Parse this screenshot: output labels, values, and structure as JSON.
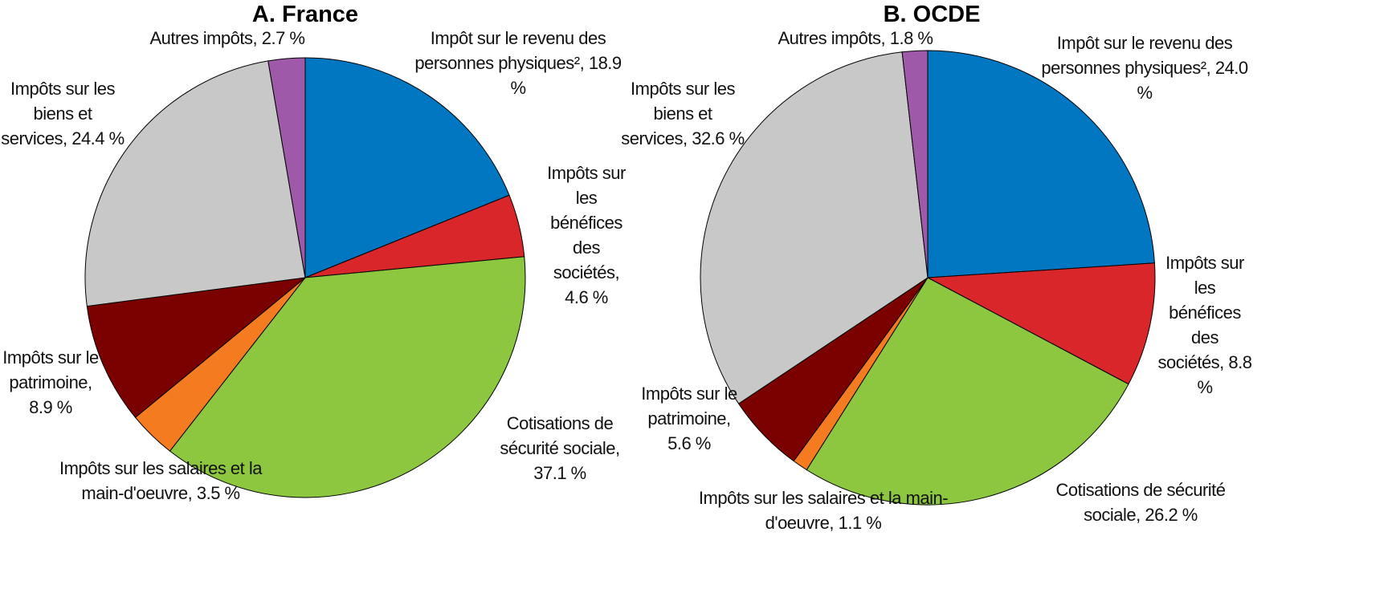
{
  "chart_data": [
    {
      "type": "pie",
      "title": "A. France",
      "categories": [
        "Impôt sur le revenu des personnes physiques²,",
        "Impôts sur les bénéfices des sociétés,",
        "Cotisations de sécurité sociale,",
        "Impôts sur les salaires et la main-d'oeuvre,",
        "Impôts sur le patrimoine,",
        "Impôts sur les biens et services,",
        "Autres impôts,"
      ],
      "values": [
        18.9,
        4.6,
        37.1,
        3.5,
        8.9,
        24.4,
        2.7
      ],
      "value_labels": [
        "18.9 %",
        "4.6 %",
        "37.1 %",
        "3.5 %",
        "8.9 %",
        "24.4 %",
        "2.7 %"
      ],
      "colors": [
        "#0077c0",
        "#d9262b",
        "#8dc63f",
        "#f47b20",
        "#7b0000",
        "#c8c8c8",
        "#9e5aa8"
      ]
    },
    {
      "type": "pie",
      "title": "B. OCDE",
      "categories": [
        "Impôt sur le revenu des personnes physiques²,",
        "Impôts sur les bénéfices des sociétés,",
        "Cotisations de sécurité sociale,",
        "Impôts sur les salaires et la main-d'oeuvre,",
        "Impôts sur le patrimoine,",
        "Impôts sur les biens et services,",
        "Autres impôts,"
      ],
      "values": [
        24.0,
        8.8,
        26.2,
        1.1,
        5.6,
        32.6,
        1.8
      ],
      "value_labels": [
        "24.0 %",
        "8.8 %",
        "26.2 %",
        "1.1 %",
        "5.6 %",
        "32.6 %",
        "1.8 %"
      ],
      "colors": [
        "#0077c0",
        "#d9262b",
        "#8dc63f",
        "#f47b20",
        "#7b0000",
        "#c8c8c8",
        "#9e5aa8"
      ]
    }
  ]
}
